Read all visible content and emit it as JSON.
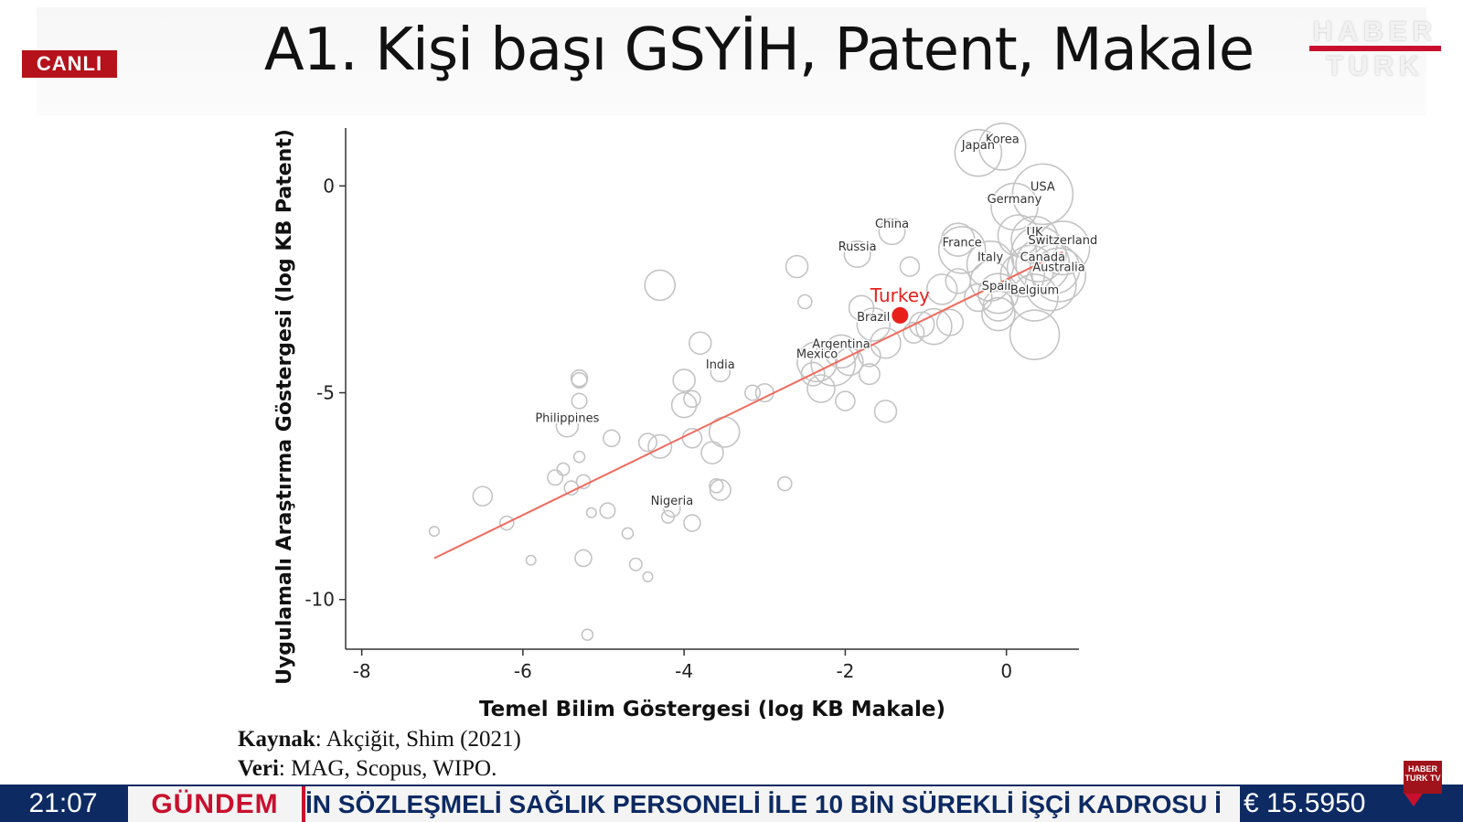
{
  "slide": {
    "title": "A1. Kişi başı GSYİH, Patent, Makale",
    "source_label": "Kaynak",
    "source_value": ": Akçiğit, Shim (2021)",
    "data_label": "Veri",
    "data_value": ": MAG, Scopus, WIPO."
  },
  "overlay": {
    "live_badge": "CANLI",
    "logo_line1": "HABER",
    "logo_line2": "TURK",
    "mini_logo": "HABER TURK TV"
  },
  "ticker": {
    "time": "21:07",
    "category": "GÜNDEM",
    "headline": "İN SÖZLEŞMELİ SAĞLIK PERSONELİ İLE 10 BİN SÜREKLİ İŞÇİ KADROSU İ",
    "currency": "€ 15.5950",
    "currency_trend": "down"
  },
  "chart_data": {
    "type": "scatter",
    "xlabel": "Temel Bilim Göstergesi (log KB Makale)",
    "ylabel": "Uygulamalı Araştırma Göstergesi (log KB Patent)",
    "xlim": [
      -8.2,
      0.9
    ],
    "ylim": [
      -11.2,
      1.4
    ],
    "xticks": [
      -8,
      -6,
      -4,
      -2,
      0
    ],
    "yticks": [
      0,
      -5,
      -10
    ],
    "colors": {
      "points": "#c4c4c4",
      "highlight": "#e8201c",
      "fit": "#f06a5d",
      "axis": "#333333"
    },
    "fit_line": {
      "x": [
        -7.1,
        0.7
      ],
      "y": [
        -9.0,
        -1.6
      ]
    },
    "highlight": {
      "label": "Turkey",
      "x": -1.32,
      "y": -3.13
    },
    "labeled_points": [
      {
        "label": "Korea",
        "x": -0.05,
        "y": 0.95,
        "size": 3
      },
      {
        "label": "Japan",
        "x": -0.35,
        "y": 0.8,
        "size": 3
      },
      {
        "label": "USA",
        "x": 0.45,
        "y": -0.2,
        "size": 4
      },
      {
        "label": "Germany",
        "x": 0.1,
        "y": -0.5,
        "size": 3
      },
      {
        "label": "China",
        "x": -1.42,
        "y": -1.1,
        "size": 1.5
      },
      {
        "label": "Russia",
        "x": -1.85,
        "y": -1.65,
        "size": 1.5
      },
      {
        "label": "France",
        "x": -0.55,
        "y": -1.55,
        "size": 3
      },
      {
        "label": "UK",
        "x": 0.35,
        "y": -1.3,
        "size": 3
      },
      {
        "label": "Switzerland",
        "x": 0.7,
        "y": -1.5,
        "size": 3.5
      },
      {
        "label": "Italy",
        "x": -0.2,
        "y": -1.9,
        "size": 3
      },
      {
        "label": "Canada",
        "x": 0.45,
        "y": -1.9,
        "size": 3.5
      },
      {
        "label": "Australia",
        "x": 0.65,
        "y": -2.15,
        "size": 3.5
      },
      {
        "label": "Spain",
        "x": -0.1,
        "y": -2.6,
        "size": 2.5
      },
      {
        "label": "Belgium",
        "x": 0.35,
        "y": -2.7,
        "size": 3
      },
      {
        "label": "Brazil",
        "x": -1.65,
        "y": -3.35,
        "size": 2
      },
      {
        "label": "Argentina",
        "x": -2.05,
        "y": -4.0,
        "size": 2
      },
      {
        "label": "Mexico",
        "x": -2.35,
        "y": -4.25,
        "size": 2.5
      },
      {
        "label": "India",
        "x": -3.55,
        "y": -4.5,
        "size": 1
      },
      {
        "label": "Philippines",
        "x": -5.45,
        "y": -5.8,
        "size": 1.2
      },
      {
        "label": "Nigeria",
        "x": -4.15,
        "y": -7.8,
        "size": 0.8
      }
    ],
    "points": [
      {
        "x": -4.3,
        "y": -2.4,
        "size": 1.8
      },
      {
        "x": -2.6,
        "y": -1.95,
        "size": 1.2
      },
      {
        "x": -2.5,
        "y": -2.8,
        "size": 0.6
      },
      {
        "x": -1.8,
        "y": -2.95,
        "size": 1.4
      },
      {
        "x": -1.2,
        "y": -1.95,
        "size": 1.0
      },
      {
        "x": -0.8,
        "y": -2.5,
        "size": 1.8
      },
      {
        "x": -0.7,
        "y": -3.3,
        "size": 1.5
      },
      {
        "x": -0.9,
        "y": -3.4,
        "size": 2.2
      },
      {
        "x": -1.5,
        "y": -3.8,
        "size": 1.8
      },
      {
        "x": -1.7,
        "y": -4.1,
        "size": 1.2
      },
      {
        "x": -1.95,
        "y": -4.25,
        "size": 1.6
      },
      {
        "x": -2.15,
        "y": -4.3,
        "size": 2.8
      },
      {
        "x": -2.4,
        "y": -4.55,
        "size": 1.3
      },
      {
        "x": -1.7,
        "y": -4.55,
        "size": 1.1
      },
      {
        "x": -2.3,
        "y": -4.9,
        "size": 1.6
      },
      {
        "x": -2.0,
        "y": -5.2,
        "size": 1.0
      },
      {
        "x": -1.5,
        "y": -5.45,
        "size": 1.2
      },
      {
        "x": -0.1,
        "y": -2.9,
        "size": 1.8
      },
      {
        "x": -0.1,
        "y": -3.1,
        "size": 2.0
      },
      {
        "x": 0.35,
        "y": -3.6,
        "size": 3.2
      },
      {
        "x": 0.3,
        "y": -2.0,
        "size": 3.0
      },
      {
        "x": 0.15,
        "y": -1.2,
        "size": 2.6
      },
      {
        "x": -4.0,
        "y": -4.7,
        "size": 1.2
      },
      {
        "x": -3.8,
        "y": -3.8,
        "size": 1.2
      },
      {
        "x": -4.0,
        "y": -5.3,
        "size": 1.4
      },
      {
        "x": -3.9,
        "y": -5.15,
        "size": 0.8
      },
      {
        "x": -3.0,
        "y": -5.0,
        "size": 0.9
      },
      {
        "x": -3.15,
        "y": -5.0,
        "size": 0.7
      },
      {
        "x": -3.5,
        "y": -5.95,
        "size": 1.8
      },
      {
        "x": -3.9,
        "y": -6.1,
        "size": 1.0
      },
      {
        "x": -3.65,
        "y": -6.45,
        "size": 1.2
      },
      {
        "x": -4.3,
        "y": -6.3,
        "size": 1.3
      },
      {
        "x": -4.45,
        "y": -6.2,
        "size": 0.9
      },
      {
        "x": -4.9,
        "y": -6.1,
        "size": 0.8
      },
      {
        "x": -5.3,
        "y": -4.65,
        "size": 0.8
      },
      {
        "x": -5.3,
        "y": -4.7,
        "size": 0.7
      },
      {
        "x": -5.3,
        "y": -5.2,
        "size": 0.7
      },
      {
        "x": -5.3,
        "y": -6.55,
        "size": 0.4
      },
      {
        "x": -5.6,
        "y": -7.05,
        "size": 0.7
      },
      {
        "x": -5.5,
        "y": -6.85,
        "size": 0.5
      },
      {
        "x": -5.4,
        "y": -7.3,
        "size": 0.6
      },
      {
        "x": -5.25,
        "y": -7.15,
        "size": 0.6
      },
      {
        "x": -6.5,
        "y": -7.5,
        "size": 1.0
      },
      {
        "x": -6.2,
        "y": -8.15,
        "size": 0.6
      },
      {
        "x": -5.15,
        "y": -7.9,
        "size": 0.3
      },
      {
        "x": -4.95,
        "y": -7.85,
        "size": 0.7
      },
      {
        "x": -4.7,
        "y": -8.4,
        "size": 0.4
      },
      {
        "x": -4.2,
        "y": -8.0,
        "size": 0.5
      },
      {
        "x": -3.9,
        "y": -8.15,
        "size": 0.8
      },
      {
        "x": -3.55,
        "y": -7.35,
        "size": 1.1
      },
      {
        "x": -3.6,
        "y": -7.25,
        "size": 0.6
      },
      {
        "x": -2.75,
        "y": -7.2,
        "size": 0.6
      },
      {
        "x": -5.25,
        "y": -9.0,
        "size": 0.8
      },
      {
        "x": -5.9,
        "y": -9.05,
        "size": 0.3
      },
      {
        "x": -4.6,
        "y": -9.15,
        "size": 0.5
      },
      {
        "x": -4.45,
        "y": -9.45,
        "size": 0.3
      },
      {
        "x": -7.1,
        "y": -8.35,
        "size": 0.3
      },
      {
        "x": -5.2,
        "y": -10.85,
        "size": 0.4
      },
      {
        "x": -0.6,
        "y": -1.3,
        "size": 2.0
      },
      {
        "x": -0.2,
        "y": -2.3,
        "size": 2.5
      },
      {
        "x": 0.55,
        "y": -2.4,
        "size": 3.3
      },
      {
        "x": 0.4,
        "y": -1.65,
        "size": 3.6
      },
      {
        "x": 0.6,
        "y": -2.0,
        "size": 3.2
      },
      {
        "x": 0.2,
        "y": -2.15,
        "size": 2.8
      },
      {
        "x": -0.35,
        "y": -2.7,
        "size": 1.6
      },
      {
        "x": -0.6,
        "y": -2.3,
        "size": 1.4
      },
      {
        "x": -1.05,
        "y": -3.35,
        "size": 1.4
      },
      {
        "x": -1.15,
        "y": -3.55,
        "size": 1.1
      }
    ]
  }
}
